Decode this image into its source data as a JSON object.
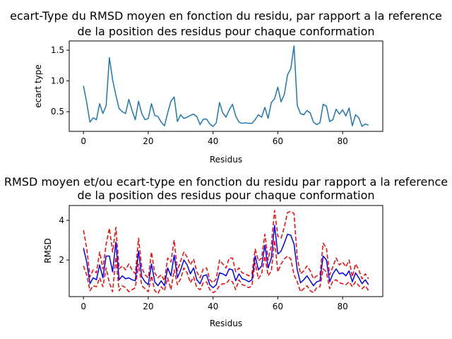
{
  "chart_data": [
    {
      "type": "line",
      "title": "ecart-Type du RMSD moyen en fonction du residu, par rapport a la reference",
      "subtitle": "de la position des residus pour chaque conformation",
      "xlabel": "Residus",
      "ylabel": "ecart type",
      "xlim": [
        -4.4,
        92.4
      ],
      "ylim": [
        0.18,
        1.65
      ],
      "xticks": [
        0,
        20,
        40,
        60,
        80
      ],
      "yticks": [
        0.5,
        1.0,
        1.5
      ],
      "xtick_labels": [
        "0",
        "20",
        "40",
        "60",
        "80"
      ],
      "ytick_labels": [
        "0.5",
        "1.0",
        "1.5"
      ],
      "grid": false,
      "series": [
        {
          "color": "#1f77b4",
          "style": "solid",
          "values": [
            0.92,
            0.65,
            0.33,
            0.4,
            0.37,
            0.63,
            0.47,
            0.6,
            1.38,
            1.02,
            0.77,
            0.55,
            0.5,
            0.47,
            0.7,
            0.52,
            0.37,
            0.67,
            0.47,
            0.37,
            0.39,
            0.63,
            0.44,
            0.42,
            0.33,
            0.27,
            0.48,
            0.67,
            0.74,
            0.34,
            0.45,
            0.39,
            0.41,
            0.44,
            0.46,
            0.42,
            0.29,
            0.38,
            0.38,
            0.3,
            0.26,
            0.32,
            0.65,
            0.48,
            0.41,
            0.53,
            0.62,
            0.43,
            0.33,
            0.31,
            0.32,
            0.31,
            0.31,
            0.37,
            0.45,
            0.41,
            0.57,
            0.39,
            0.65,
            0.71,
            0.9,
            0.66,
            0.78,
            1.1,
            1.2,
            1.57,
            0.6,
            0.47,
            0.45,
            0.52,
            0.48,
            0.33,
            0.29,
            0.32,
            0.62,
            0.59,
            0.34,
            0.37,
            0.54,
            0.46,
            0.53,
            0.43,
            0.56,
            0.27,
            0.45,
            0.4,
            0.26,
            0.3,
            0.28
          ]
        }
      ]
    },
    {
      "type": "line",
      "title": "RMSD moyen et/ou ecart-type en fonction du residu par rapport a la reference",
      "subtitle": "de la position des residus pour chaque conformation",
      "xlabel": "Residus",
      "ylabel": "RMSD",
      "xlim": [
        -4.4,
        92.4
      ],
      "ylim": [
        0.15,
        4.75
      ],
      "xticks": [
        0,
        20,
        40,
        60,
        80
      ],
      "yticks": [
        2,
        4
      ],
      "xtick_labels": [
        "0",
        "20",
        "40",
        "60",
        "80"
      ],
      "ytick_labels": [
        "2",
        "4"
      ],
      "grid": false,
      "series": [
        {
          "color": "#0000ff",
          "style": "solid",
          "values": [
            2.6,
            1.9,
            0.8,
            1.1,
            1.0,
            1.75,
            1.1,
            2.2,
            2.2,
            1.4,
            2.9,
            1.0,
            1.2,
            1.05,
            1.1,
            1.0,
            0.95,
            2.45,
            1.15,
            0.9,
            0.75,
            1.8,
            0.9,
            0.7,
            0.95,
            0.7,
            1.6,
            1.2,
            2.25,
            1.1,
            1.5,
            2.0,
            1.75,
            1.3,
            1.6,
            1.0,
            0.8,
            1.2,
            1.25,
            0.75,
            0.6,
            0.75,
            1.35,
            1.3,
            1.2,
            1.55,
            1.5,
            0.95,
            1.3,
            1.05,
            1.0,
            0.9,
            1.0,
            2.2,
            1.5,
            1.7,
            2.75,
            1.6,
            2.1,
            3.75,
            2.3,
            2.45,
            2.85,
            3.3,
            3.25,
            2.8,
            1.5,
            0.85,
            1.0,
            1.2,
            0.95,
            0.7,
            0.9,
            0.95,
            2.2,
            2.0,
            0.9,
            1.3,
            1.55,
            1.3,
            1.35,
            1.2,
            1.45,
            0.9,
            1.35,
            1.1,
            0.8,
            1.0,
            0.75
          ]
        },
        {
          "color": "#ff0000",
          "style": "dashed",
          "values": [
            3.5,
            2.6,
            1.15,
            1.5,
            1.35,
            2.4,
            1.55,
            2.8,
            3.6,
            2.4,
            3.65,
            1.55,
            1.7,
            1.5,
            1.8,
            1.5,
            1.3,
            3.1,
            1.6,
            1.25,
            1.1,
            2.4,
            1.35,
            1.1,
            1.25,
            0.95,
            2.1,
            1.9,
            3.0,
            1.45,
            1.95,
            2.4,
            2.15,
            1.75,
            2.05,
            1.4,
            1.1,
            1.55,
            1.6,
            1.0,
            0.85,
            1.05,
            2.0,
            1.8,
            1.6,
            2.1,
            2.1,
            1.4,
            1.6,
            1.35,
            1.3,
            1.2,
            1.3,
            2.55,
            1.95,
            2.1,
            3.3,
            2.0,
            2.75,
            4.5,
            3.2,
            3.1,
            3.65,
            4.4,
            4.45,
            4.35,
            2.1,
            1.3,
            1.45,
            1.7,
            1.45,
            1.05,
            1.2,
            1.25,
            2.85,
            2.6,
            1.25,
            1.65,
            2.1,
            1.75,
            1.9,
            1.65,
            2.0,
            1.15,
            1.8,
            1.5,
            1.05,
            1.3,
            1.05
          ]
        },
        {
          "color": "#ff0000",
          "style": "dashed",
          "values": [
            1.7,
            1.25,
            0.45,
            0.7,
            0.65,
            1.1,
            0.65,
            1.6,
            0.85,
            0.4,
            2.15,
            0.45,
            0.7,
            0.6,
            0.4,
            0.5,
            0.6,
            1.8,
            0.7,
            0.55,
            0.4,
            1.2,
            0.45,
            0.3,
            0.65,
            0.45,
            1.1,
            0.5,
            1.5,
            0.75,
            1.05,
            1.6,
            1.35,
            0.85,
            1.15,
            0.6,
            0.5,
            0.85,
            0.9,
            0.5,
            0.35,
            0.45,
            0.7,
            0.8,
            0.8,
            1.0,
            0.9,
            0.5,
            1.0,
            0.75,
            0.7,
            0.6,
            0.7,
            1.85,
            1.05,
            1.3,
            2.2,
            1.2,
            1.45,
            3.0,
            1.4,
            1.8,
            2.05,
            2.2,
            2.05,
            1.25,
            0.9,
            0.4,
            0.55,
            0.7,
            0.45,
            0.35,
            0.6,
            0.65,
            1.55,
            1.4,
            0.55,
            0.95,
            1.0,
            0.85,
            0.8,
            0.75,
            0.9,
            0.65,
            0.9,
            0.7,
            0.55,
            0.7,
            0.45
          ]
        }
      ]
    }
  ]
}
